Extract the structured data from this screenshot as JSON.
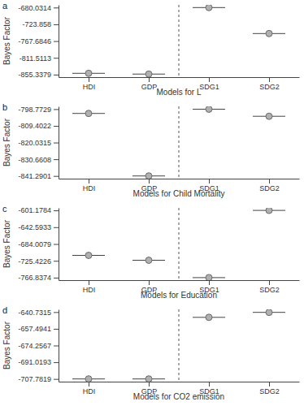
{
  "chart_data": [
    {
      "type": "dot",
      "title": "a",
      "x_label": "Models for L",
      "y_label": "Bayes Factor",
      "categories": [
        "HDI",
        "GDP",
        "SDG1",
        "SDG2"
      ],
      "values": [
        -852.0,
        -854.0,
        -680.0314,
        -748.0
      ],
      "color": "#b0b0b0",
      "marker": "circle",
      "ylim": [
        -862,
        -673
      ],
      "yticks": [
        -855.3379,
        -811.5113,
        -767.6846,
        -723.858,
        -680.0314
      ]
    },
    {
      "type": "dot",
      "title": "b",
      "x_label": "Models for Child Mortality",
      "y_label": "Bayes Factor",
      "categories": [
        "HDI",
        "GDP",
        "SDG1",
        "SDG2"
      ],
      "values": [
        -801.5,
        -841.29,
        -798.8,
        -803.3
      ],
      "color": "#b0b0b0",
      "marker": "circle",
      "ylim": [
        -843,
        -797
      ],
      "yticks": [
        -841.2901,
        -830.6608,
        -820.0315,
        -809.4022,
        -798.7729
      ]
    },
    {
      "type": "dot",
      "title": "c",
      "x_label": "Models for Education",
      "y_label": "Bayes Factor",
      "categories": [
        "HDI",
        "GDP",
        "SDG1",
        "SDG2"
      ],
      "values": [
        -712.0,
        -724.0,
        -766.8,
        -601.2
      ],
      "color": "#b0b0b0",
      "marker": "circle",
      "ylim": [
        -773,
        -595
      ],
      "yticks": [
        -766.8374,
        -725.4226,
        -684.0079,
        -642.5933,
        -601.1784
      ]
    },
    {
      "type": "dot",
      "title": "d",
      "x_label": "Models for CO2 emission",
      "y_label": "Bayes Factor",
      "categories": [
        "HDI",
        "GDP",
        "SDG1",
        "SDG2"
      ],
      "values": [
        -707.8,
        -707.8,
        -646.0,
        -641.0
      ],
      "color": "#b0b0b0",
      "marker": "circle",
      "ylim": [
        -710.5,
        -638
      ],
      "yticks": [
        -707.7819,
        -691.0193,
        -674.2567,
        -657.4941,
        -640.7315
      ]
    }
  ]
}
